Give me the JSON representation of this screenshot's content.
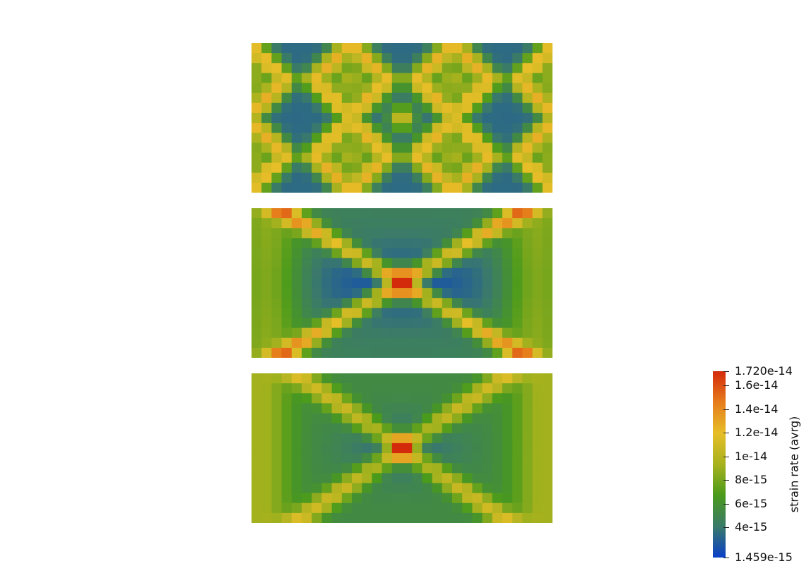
{
  "panels": [
    {
      "name": "pattern-small-cells",
      "cols": 30,
      "rows": 15
    },
    {
      "name": "pattern-medium-cells",
      "cols": 30,
      "rows": 15
    },
    {
      "name": "pattern-large-cells",
      "cols": 30,
      "rows": 15
    }
  ],
  "colorbar": {
    "title": "strain rate (avrg)",
    "min": 1.459e-15,
    "max": 1.72e-14,
    "min_label": "1.459e-15",
    "max_label": "1.720e-14",
    "ticks": [
      {
        "label": "1.6e-14",
        "value": 1.6e-14
      },
      {
        "label": "1.4e-14",
        "value": 1.4e-14
      },
      {
        "label": "1.2e-14",
        "value": 1.2e-14
      },
      {
        "label": "1e-14",
        "value": 1e-14
      },
      {
        "label": "8e-15",
        "value": 8e-15
      },
      {
        "label": "6e-15",
        "value": 6e-15
      },
      {
        "label": "4e-15",
        "value": 4e-15
      }
    ],
    "colors": [
      "#0a3fc8",
      "#3a7a6a",
      "#4a9a1c",
      "#a6b21e",
      "#e6be28",
      "#e67c1c",
      "#d42a0c"
    ]
  }
}
